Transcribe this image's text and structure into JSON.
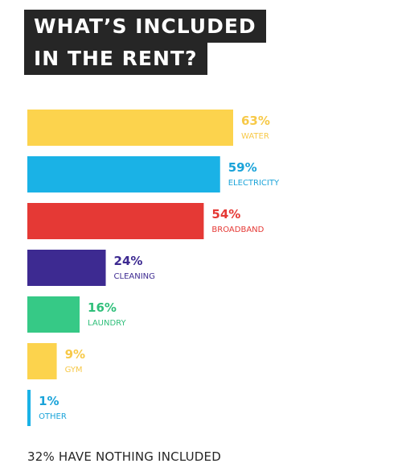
{
  "title_lines": [
    "WHAT’S INCLUDED",
    "IN THE RENT?"
  ],
  "footer": "32% HAVE NOTHING INCLUDED",
  "chart_data": {
    "type": "bar",
    "orientation": "horizontal",
    "title": "WHAT’S INCLUDED IN THE RENT?",
    "categories": [
      "WATER",
      "ELECTRICITY",
      "BROADBAND",
      "CLEANING",
      "LAUNDRY",
      "GYM",
      "OTHER"
    ],
    "values": [
      63,
      59,
      54,
      24,
      16,
      9,
      1
    ],
    "value_labels": [
      "63%",
      "59%",
      "54%",
      "24%",
      "16%",
      "9%",
      "1%"
    ],
    "colors": [
      "#fcd34d",
      "#1ab2e6",
      "#e53935",
      "#3d2a91",
      "#36c986",
      "#fcd34d",
      "#1ab2e6"
    ],
    "label_colors": [
      "#f7c948",
      "#1aa3d9",
      "#e53935",
      "#3d2a91",
      "#2fbf7a",
      "#f7c948",
      "#1aa3d9"
    ],
    "unit": "%",
    "xlim": [
      0,
      63
    ],
    "grid": false,
    "legend": "none",
    "note": "32% HAVE NOTHING INCLUDED"
  }
}
